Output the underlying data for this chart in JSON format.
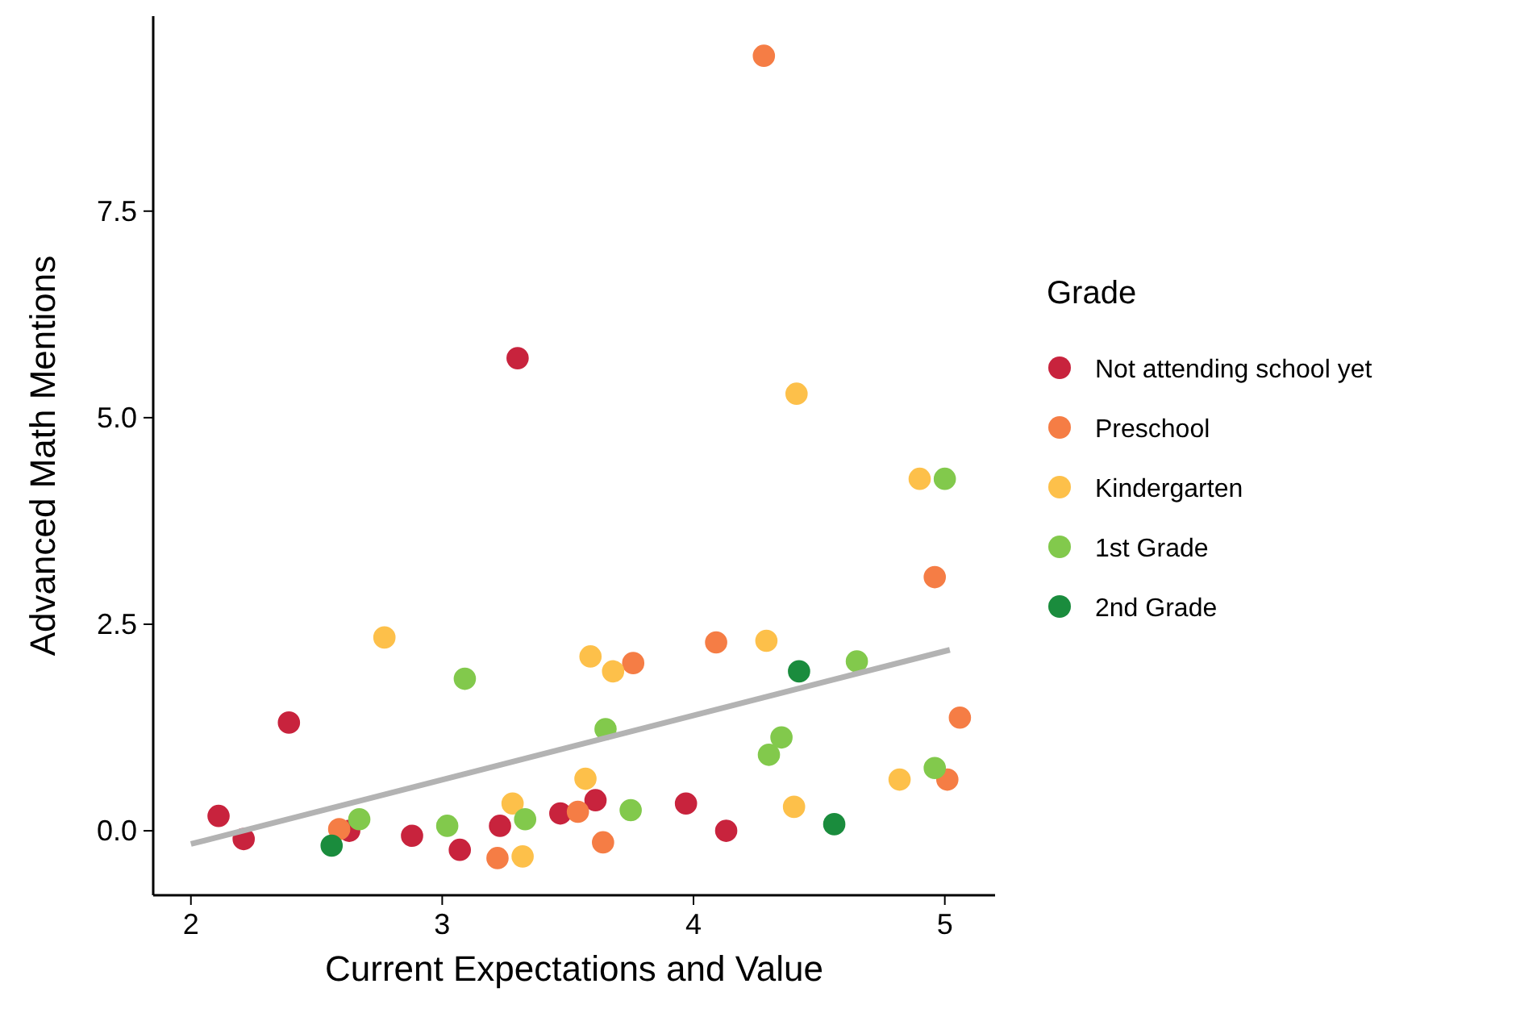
{
  "chart_data": {
    "type": "scatter",
    "xlabel": "Current Expectations and Value",
    "ylabel": "Advanced Math Mentions",
    "legend_title": "Grade",
    "legend": "right",
    "grid": false,
    "marker": "circle",
    "xlim": [
      1.85,
      5.2
    ],
    "xticks": [
      2,
      3,
      4,
      5
    ],
    "ylim": [
      -0.78,
      9.86
    ],
    "yticks": [
      {
        "value": 0,
        "label": "0.0"
      },
      {
        "value": 2.5,
        "label": "2.5"
      },
      {
        "value": 5,
        "label": "5.0"
      },
      {
        "value": 7.5,
        "label": "7.5"
      }
    ],
    "series": [
      {
        "name": "Not attending school yet",
        "color": "#c8233d",
        "x": [
          2.11,
          2.21,
          2.39,
          2.63,
          2.88,
          3.07,
          3.23,
          3.3,
          3.47,
          3.61,
          3.97,
          4.13
        ],
        "values": [
          0.18,
          -0.1,
          1.31,
          0,
          -0.06,
          -0.23,
          0.06,
          5.72,
          0.21,
          0.37,
          0.33,
          0
        ]
      },
      {
        "name": "Preschool",
        "color": "#f57d45",
        "x": [
          2.59,
          3.22,
          3.54,
          3.64,
          3.76,
          4.09,
          4.28,
          4.96,
          5.01,
          5.06
        ],
        "values": [
          0.02,
          -0.33,
          0.23,
          -0.14,
          2.03,
          2.28,
          9.38,
          3.07,
          0.62,
          1.37
        ]
      },
      {
        "name": "Kindergarten",
        "color": "#fdc04a",
        "x": [
          2.77,
          3.28,
          3.32,
          3.57,
          3.59,
          3.68,
          4.29,
          4.41,
          4.4,
          4.82,
          4.9
        ],
        "values": [
          2.34,
          0.33,
          -0.31,
          0.63,
          2.11,
          1.93,
          2.3,
          5.29,
          0.29,
          0.62,
          4.26
        ]
      },
      {
        "name": "1st Grade",
        "color": "#82c94c",
        "x": [
          2.67,
          3.02,
          3.09,
          3.33,
          3.65,
          3.75,
          4.3,
          4.35,
          4.65,
          4.96,
          5.0
        ],
        "values": [
          0.14,
          0.06,
          1.84,
          0.14,
          1.23,
          0.25,
          0.92,
          1.13,
          2.05,
          0.76,
          4.26
        ]
      },
      {
        "name": "2nd Grade",
        "color": "#1a8c3d",
        "x": [
          2.56,
          4.42,
          4.56
        ],
        "values": [
          -0.18,
          1.93,
          0.08
        ]
      },
      {
        "type": "line",
        "marker": "none",
        "color": "#b3b3b3",
        "x": [
          2,
          5.02
        ],
        "values": [
          -0.16,
          2.19
        ]
      }
    ]
  }
}
